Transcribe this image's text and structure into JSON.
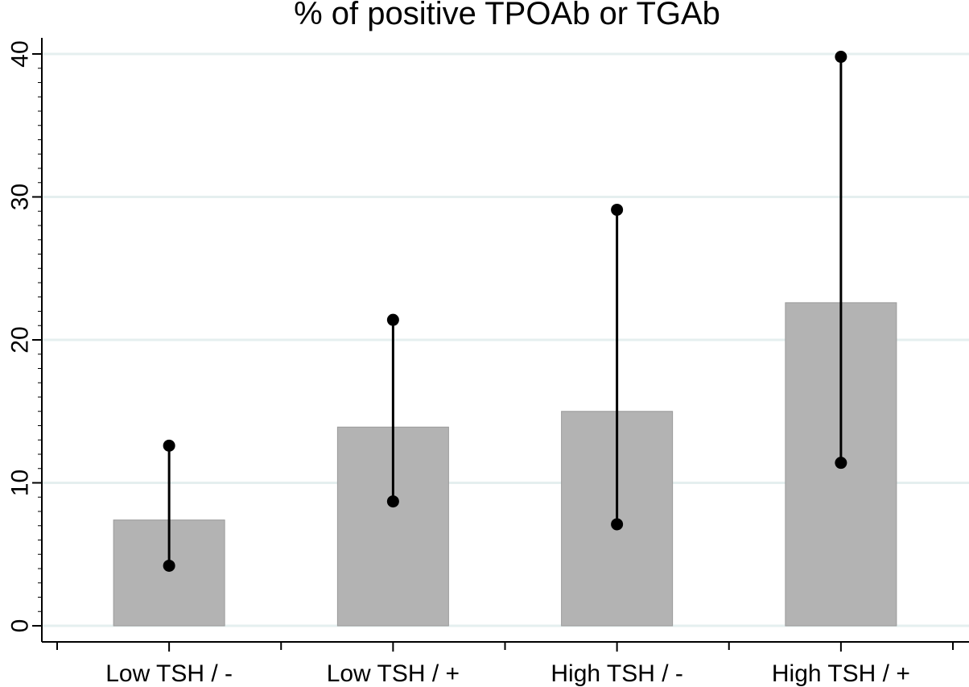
{
  "chart_data": {
    "type": "bar",
    "title": "% of positive TPOAb or TGAb",
    "xlabel": "",
    "ylabel": "",
    "ylim": [
      0,
      41
    ],
    "yticks": [
      0,
      10,
      20,
      30,
      40
    ],
    "categories": [
      "Low TSH / -",
      "Low TSH / +",
      "High TSH / -",
      "High TSH / +"
    ],
    "values": [
      7.4,
      13.9,
      15.0,
      22.6
    ],
    "ci_lower": [
      4.2,
      8.7,
      7.1,
      11.4
    ],
    "ci_upper": [
      12.6,
      21.4,
      29.1,
      39.8
    ],
    "grid": true,
    "colors": {
      "bar": "#b3b3b3",
      "bar_edge": "#9a9a9a",
      "grid": "#e5efef",
      "errorbar": "#000000"
    }
  }
}
